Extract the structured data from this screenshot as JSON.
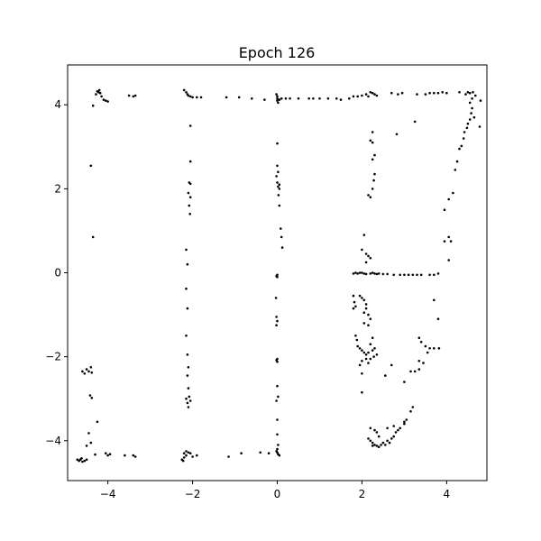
{
  "chart_data": {
    "type": "scatter",
    "title": "Epoch 126",
    "xlabel": "",
    "ylabel": "",
    "xlim": [
      -4.95,
      4.95
    ],
    "ylim": [
      -4.95,
      4.95
    ],
    "xticks": [
      -4,
      -2,
      0,
      2,
      4
    ],
    "yticks": [
      -4,
      -2,
      0,
      2,
      4
    ],
    "xtick_labels": [
      "−4",
      "−2",
      "0",
      "2",
      "4"
    ],
    "ytick_labels": [
      "−4",
      "−2",
      "0",
      "2",
      "4"
    ],
    "grid": false,
    "marker_color": "#000000",
    "series": [
      {
        "points": [
          [
            -4.25,
            4.32
          ],
          [
            -4.22,
            4.3
          ],
          [
            -4.18,
            4.28
          ],
          [
            -4.2,
            4.35
          ],
          [
            -4.15,
            4.2
          ],
          [
            -4.1,
            4.12
          ],
          [
            -4.05,
            4.1
          ],
          [
            -4.0,
            4.08
          ],
          [
            -4.28,
            4.25
          ],
          [
            -4.35,
            3.98
          ],
          [
            -3.5,
            4.22
          ],
          [
            -3.4,
            4.2
          ],
          [
            -3.35,
            4.22
          ],
          [
            -2.2,
            4.35
          ],
          [
            -2.15,
            4.3
          ],
          [
            -2.1,
            4.22
          ],
          [
            -2.05,
            4.2
          ],
          [
            -2.0,
            4.18
          ],
          [
            -1.9,
            4.18
          ],
          [
            -1.8,
            4.18
          ],
          [
            -2.12,
            4.25
          ],
          [
            -1.2,
            4.18
          ],
          [
            -0.9,
            4.18
          ],
          [
            -0.6,
            4.15
          ],
          [
            -0.3,
            4.12
          ],
          [
            0.0,
            4.2
          ],
          [
            0.0,
            4.15
          ],
          [
            0.0,
            4.1
          ],
          [
            0.02,
            4.05
          ],
          [
            -0.02,
            4.25
          ],
          [
            0.05,
            4.12
          ],
          [
            0.1,
            4.15
          ],
          [
            0.2,
            4.15
          ],
          [
            0.3,
            4.15
          ],
          [
            0.5,
            4.15
          ],
          [
            0.75,
            4.15
          ],
          [
            0.85,
            4.15
          ],
          [
            1.0,
            4.15
          ],
          [
            1.2,
            4.15
          ],
          [
            1.4,
            4.15
          ],
          [
            1.5,
            4.12
          ],
          [
            1.7,
            4.15
          ],
          [
            1.8,
            4.2
          ],
          [
            1.9,
            4.2
          ],
          [
            2.0,
            4.22
          ],
          [
            2.1,
            4.25
          ],
          [
            2.2,
            4.3
          ],
          [
            2.25,
            4.28
          ],
          [
            2.3,
            4.25
          ],
          [
            2.35,
            4.22
          ],
          [
            2.15,
            4.2
          ],
          [
            2.7,
            4.28
          ],
          [
            2.85,
            4.25
          ],
          [
            2.95,
            4.28
          ],
          [
            3.3,
            4.25
          ],
          [
            3.5,
            4.25
          ],
          [
            3.6,
            4.28
          ],
          [
            3.7,
            4.28
          ],
          [
            3.8,
            4.28
          ],
          [
            3.9,
            4.3
          ],
          [
            4.0,
            4.28
          ],
          [
            4.3,
            4.3
          ],
          [
            4.45,
            4.25
          ],
          [
            4.5,
            4.3
          ],
          [
            4.55,
            4.28
          ],
          [
            4.62,
            4.3
          ],
          [
            4.68,
            4.22
          ],
          [
            4.6,
            4.15
          ],
          [
            4.55,
            4.05
          ],
          [
            4.6,
            3.92
          ],
          [
            4.58,
            3.8
          ],
          [
            4.65,
            3.7
          ],
          [
            4.55,
            3.65
          ],
          [
            4.5,
            3.55
          ],
          [
            4.48,
            3.45
          ],
          [
            4.42,
            3.35
          ],
          [
            4.4,
            3.2
          ],
          [
            4.3,
            2.95
          ],
          [
            4.25,
            2.65
          ],
          [
            4.2,
            2.45
          ],
          [
            4.35,
            3.02
          ],
          [
            4.78,
            3.48
          ],
          [
            4.8,
            4.1
          ],
          [
            4.05,
            1.75
          ],
          [
            4.15,
            1.9
          ],
          [
            3.95,
            1.5
          ],
          [
            4.05,
            0.85
          ],
          [
            4.1,
            0.75
          ],
          [
            3.95,
            0.75
          ],
          [
            4.05,
            0.3
          ],
          [
            -4.4,
            2.55
          ],
          [
            -4.35,
            0.85
          ],
          [
            -2.05,
            3.5
          ],
          [
            -2.05,
            2.65
          ],
          [
            -2.08,
            2.15
          ],
          [
            -2.05,
            2.12
          ],
          [
            -2.1,
            1.9
          ],
          [
            -2.05,
            1.8
          ],
          [
            -2.08,
            1.6
          ],
          [
            -2.06,
            1.4
          ],
          [
            -2.15,
            0.55
          ],
          [
            -2.12,
            0.2
          ],
          [
            -2.15,
            -0.38
          ],
          [
            -2.12,
            -0.85
          ],
          [
            -2.15,
            -1.5
          ],
          [
            -2.12,
            -1.95
          ],
          [
            -2.1,
            -2.25
          ],
          [
            -2.12,
            -2.45
          ],
          [
            -2.1,
            -2.75
          ],
          [
            -2.08,
            -2.95
          ],
          [
            -2.15,
            -3.0
          ],
          [
            -2.05,
            -3.05
          ],
          [
            -2.12,
            -3.1
          ],
          [
            -2.1,
            -3.2
          ],
          [
            0.0,
            3.08
          ],
          [
            0.0,
            2.55
          ],
          [
            0.02,
            2.4
          ],
          [
            -0.02,
            2.3
          ],
          [
            0.0,
            2.15
          ],
          [
            0.05,
            2.1
          ],
          [
            0.02,
            2.05
          ],
          [
            0.05,
            2.0
          ],
          [
            0.03,
            1.85
          ],
          [
            0.05,
            1.6
          ],
          [
            0.08,
            1.05
          ],
          [
            0.1,
            0.85
          ],
          [
            0.12,
            0.6
          ],
          [
            0.0,
            -0.05
          ],
          [
            -0.02,
            -0.08
          ],
          [
            0.0,
            -0.1
          ],
          [
            -0.03,
            -0.6
          ],
          [
            -0.02,
            -1.05
          ],
          [
            0.0,
            -1.15
          ],
          [
            -0.02,
            -1.25
          ],
          [
            0.0,
            -2.05
          ],
          [
            -0.02,
            -2.08
          ],
          [
            0.0,
            -2.12
          ],
          [
            0.0,
            -2.7
          ],
          [
            0.02,
            -2.95
          ],
          [
            -0.02,
            -3.05
          ],
          [
            0.0,
            -3.5
          ],
          [
            0.0,
            -3.85
          ],
          [
            0.02,
            -4.1
          ],
          [
            0.0,
            -4.2
          ],
          [
            -0.02,
            -4.25
          ],
          [
            0.0,
            -4.28
          ],
          [
            0.02,
            -4.32
          ],
          [
            0.05,
            -4.35
          ],
          [
            1.8,
            -0.02
          ],
          [
            1.85,
            0.0
          ],
          [
            1.9,
            -0.02
          ],
          [
            1.95,
            0.0
          ],
          [
            2.0,
            0.0
          ],
          [
            2.05,
            -0.02
          ],
          [
            2.1,
            -0.03
          ],
          [
            2.2,
            -0.02
          ],
          [
            2.25,
            0.0
          ],
          [
            2.3,
            -0.02
          ],
          [
            2.35,
            -0.03
          ],
          [
            2.4,
            -0.02
          ],
          [
            2.5,
            -0.03
          ],
          [
            2.6,
            -0.03
          ],
          [
            2.75,
            -0.05
          ],
          [
            2.9,
            -0.05
          ],
          [
            3.0,
            -0.05
          ],
          [
            3.1,
            -0.05
          ],
          [
            3.2,
            -0.05
          ],
          [
            3.3,
            -0.05
          ],
          [
            3.4,
            -0.05
          ],
          [
            3.6,
            -0.05
          ],
          [
            3.7,
            -0.05
          ],
          [
            3.8,
            -0.02
          ],
          [
            2.05,
            0.9
          ],
          [
            2.0,
            0.55
          ],
          [
            2.1,
            0.45
          ],
          [
            2.15,
            0.4
          ],
          [
            2.2,
            0.35
          ],
          [
            2.1,
            0.25
          ],
          [
            2.2,
            1.8
          ],
          [
            2.15,
            1.85
          ],
          [
            2.25,
            2.0
          ],
          [
            2.28,
            2.2
          ],
          [
            2.3,
            2.35
          ],
          [
            2.25,
            2.7
          ],
          [
            2.3,
            2.8
          ],
          [
            2.25,
            3.1
          ],
          [
            2.2,
            3.15
          ],
          [
            2.25,
            3.35
          ],
          [
            2.82,
            3.3
          ],
          [
            3.25,
            3.6
          ],
          [
            1.8,
            -0.55
          ],
          [
            1.82,
            -0.7
          ],
          [
            1.85,
            -0.8
          ],
          [
            1.8,
            -0.85
          ],
          [
            1.95,
            -0.55
          ],
          [
            2.0,
            -0.6
          ],
          [
            2.05,
            -0.65
          ],
          [
            2.1,
            -0.75
          ],
          [
            2.1,
            -0.85
          ],
          [
            2.05,
            -0.95
          ],
          [
            2.15,
            -1.0
          ],
          [
            2.2,
            -1.1
          ],
          [
            2.05,
            -1.2
          ],
          [
            2.15,
            -1.25
          ],
          [
            2.25,
            -1.55
          ],
          [
            2.2,
            -1.7
          ],
          [
            1.85,
            -1.5
          ],
          [
            1.88,
            -1.6
          ],
          [
            1.9,
            -1.75
          ],
          [
            1.95,
            -1.8
          ],
          [
            2.0,
            -1.85
          ],
          [
            2.05,
            -1.9
          ],
          [
            2.1,
            -1.95
          ],
          [
            2.15,
            -1.9
          ],
          [
            2.25,
            -1.85
          ],
          [
            2.3,
            -1.8
          ],
          [
            2.35,
            -1.95
          ],
          [
            2.28,
            -2.0
          ],
          [
            2.2,
            -2.05
          ],
          [
            2.0,
            -2.1
          ],
          [
            1.95,
            -2.2
          ],
          [
            2.0,
            -2.4
          ],
          [
            2.1,
            -2.05
          ],
          [
            2.15,
            -2.15
          ],
          [
            2.55,
            -2.45
          ],
          [
            2.7,
            -2.2
          ],
          [
            2.0,
            -2.85
          ],
          [
            3.15,
            -2.35
          ],
          [
            3.25,
            -2.35
          ],
          [
            3.35,
            -2.3
          ],
          [
            3.35,
            -2.1
          ],
          [
            3.45,
            -2.15
          ],
          [
            3.5,
            -1.75
          ],
          [
            3.6,
            -1.8
          ],
          [
            3.7,
            -1.8
          ],
          [
            3.82,
            -1.8
          ],
          [
            3.55,
            -1.9
          ],
          [
            3.35,
            -1.55
          ],
          [
            3.4,
            -1.65
          ],
          [
            3.7,
            -0.65
          ],
          [
            3.8,
            -1.1
          ],
          [
            3.0,
            -2.6
          ],
          [
            2.2,
            -3.7
          ],
          [
            2.3,
            -3.75
          ],
          [
            2.35,
            -3.8
          ],
          [
            2.15,
            -3.95
          ],
          [
            2.2,
            -4.0
          ],
          [
            2.25,
            -4.05
          ],
          [
            2.3,
            -4.1
          ],
          [
            2.35,
            -4.12
          ],
          [
            2.4,
            -4.15
          ],
          [
            2.45,
            -4.1
          ],
          [
            2.5,
            -4.05
          ],
          [
            2.55,
            -4.1
          ],
          [
            2.6,
            -4.0
          ],
          [
            2.65,
            -4.05
          ],
          [
            2.7,
            -3.95
          ],
          [
            2.75,
            -3.9
          ],
          [
            2.8,
            -3.8
          ],
          [
            2.85,
            -3.75
          ],
          [
            2.9,
            -3.7
          ],
          [
            3.0,
            -3.6
          ],
          [
            3.0,
            -3.55
          ],
          [
            3.05,
            -3.5
          ],
          [
            3.15,
            -3.3
          ],
          [
            3.2,
            -3.2
          ],
          [
            2.6,
            -3.7
          ],
          [
            2.75,
            -3.65
          ],
          [
            2.25,
            -4.12
          ],
          [
            2.4,
            -3.9
          ],
          [
            -4.6,
            -2.35
          ],
          [
            -4.55,
            -2.4
          ],
          [
            -4.5,
            -2.3
          ],
          [
            -4.45,
            -2.35
          ],
          [
            -4.4,
            -2.25
          ],
          [
            -4.38,
            -2.38
          ],
          [
            -4.42,
            -2.92
          ],
          [
            -4.38,
            -2.98
          ],
          [
            -4.45,
            -3.82
          ],
          [
            -4.4,
            -4.05
          ],
          [
            -4.25,
            -3.55
          ],
          [
            -4.3,
            -4.33
          ],
          [
            -4.0,
            -4.35
          ],
          [
            -4.05,
            -4.3
          ],
          [
            -3.95,
            -4.32
          ],
          [
            -3.6,
            -4.35
          ],
          [
            -3.4,
            -4.35
          ],
          [
            -3.35,
            -4.38
          ],
          [
            -4.5,
            -4.12
          ],
          [
            -4.72,
            -4.45
          ],
          [
            -4.68,
            -4.48
          ],
          [
            -4.65,
            -4.45
          ],
          [
            -4.6,
            -4.5
          ],
          [
            -4.55,
            -4.48
          ],
          [
            -4.5,
            -4.45
          ],
          [
            -4.62,
            -4.42
          ],
          [
            -2.25,
            -4.45
          ],
          [
            -2.2,
            -4.4
          ],
          [
            -2.15,
            -4.35
          ],
          [
            -2.2,
            -4.3
          ],
          [
            -2.1,
            -4.28
          ],
          [
            -2.15,
            -4.25
          ],
          [
            -2.05,
            -4.3
          ],
          [
            -2.0,
            -4.38
          ],
          [
            -1.9,
            -4.35
          ],
          [
            -2.22,
            -4.48
          ],
          [
            -1.15,
            -4.38
          ],
          [
            -0.85,
            -4.3
          ],
          [
            -0.4,
            -4.28
          ],
          [
            -0.2,
            -4.3
          ]
        ]
      }
    ]
  }
}
